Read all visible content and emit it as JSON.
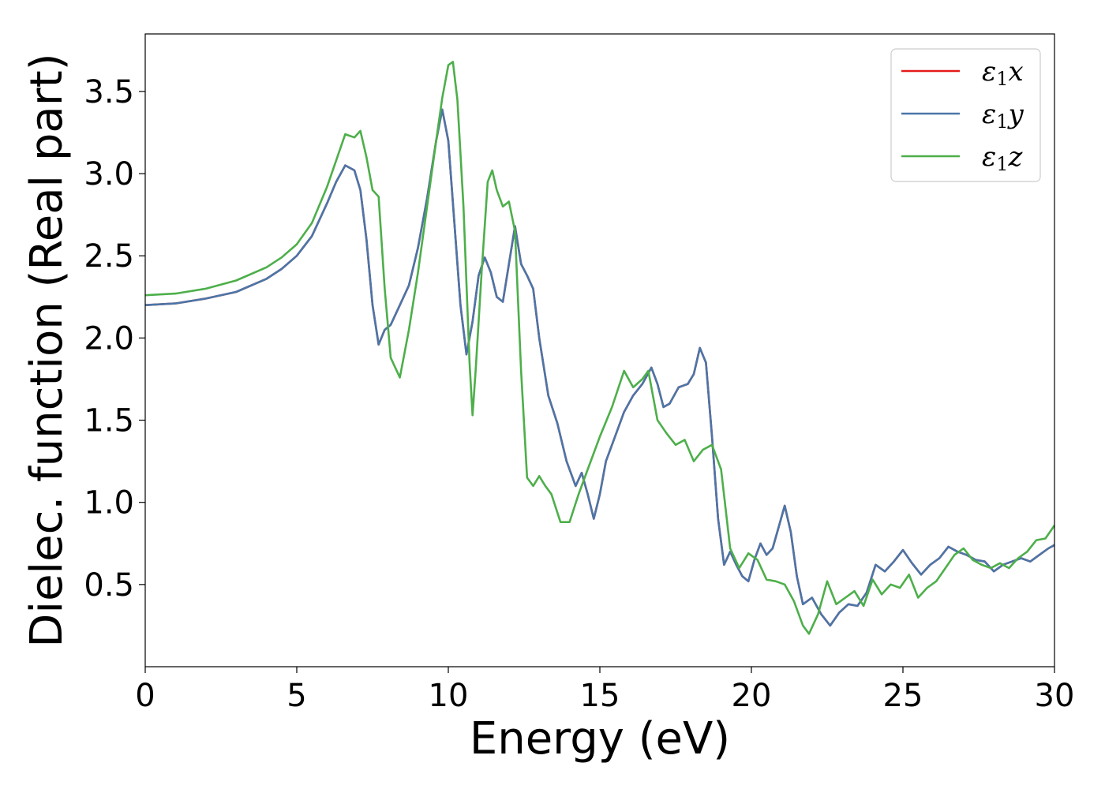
{
  "chart_data": {
    "type": "line",
    "xlabel": "Energy (eV)",
    "ylabel": "Dielec. function (Real part)",
    "xlim": [
      0,
      30
    ],
    "ylim": [
      0.0,
      3.85
    ],
    "xticks": [
      0,
      5,
      10,
      15,
      20,
      25,
      30
    ],
    "yticks": [
      0.5,
      1.0,
      1.5,
      2.0,
      2.5,
      3.0,
      3.5
    ],
    "grid": false,
    "legend_position": "top-right",
    "series": [
      {
        "name": "ε1x",
        "legend_base": "ε",
        "legend_sub": "1",
        "legend_suffix": "x",
        "color": "#e41a1c",
        "x": [
          0,
          1,
          2,
          3,
          4,
          4.5,
          5,
          5.5,
          6,
          6.3,
          6.6,
          6.9,
          7.1,
          7.3,
          7.5,
          7.7,
          7.9,
          8.1,
          8.4,
          8.7,
          9.0,
          9.3,
          9.6,
          9.8,
          10.0,
          10.2,
          10.4,
          10.6,
          10.8,
          11.0,
          11.2,
          11.4,
          11.6,
          11.8,
          12.0,
          12.2,
          12.4,
          12.6,
          12.8,
          13.0,
          13.3,
          13.6,
          13.9,
          14.2,
          14.4,
          14.6,
          14.8,
          15.0,
          15.2,
          15.5,
          15.8,
          16.1,
          16.4,
          16.7,
          16.9,
          17.1,
          17.3,
          17.6,
          17.9,
          18.1,
          18.3,
          18.5,
          18.7,
          18.9,
          19.1,
          19.3,
          19.5,
          19.7,
          19.9,
          20.1,
          20.3,
          20.5,
          20.7,
          20.9,
          21.1,
          21.3,
          21.5,
          21.7,
          22.0,
          22.3,
          22.6,
          22.9,
          23.2,
          23.5,
          23.8,
          24.1,
          24.4,
          24.7,
          25.0,
          25.3,
          25.6,
          25.9,
          26.2,
          26.5,
          26.8,
          27.1,
          27.4,
          27.7,
          28.0,
          28.3,
          28.6,
          28.9,
          29.2,
          29.5,
          29.8,
          30.0
        ],
        "y": [
          2.2,
          2.21,
          2.24,
          2.28,
          2.36,
          2.42,
          2.5,
          2.62,
          2.82,
          2.95,
          3.05,
          3.02,
          2.9,
          2.6,
          2.2,
          1.96,
          2.05,
          2.08,
          2.2,
          2.32,
          2.55,
          2.85,
          3.2,
          3.39,
          3.2,
          2.7,
          2.2,
          1.9,
          2.1,
          2.38,
          2.49,
          2.4,
          2.25,
          2.22,
          2.45,
          2.68,
          2.45,
          2.38,
          2.3,
          2.0,
          1.65,
          1.48,
          1.25,
          1.1,
          1.18,
          1.05,
          0.9,
          1.05,
          1.25,
          1.4,
          1.55,
          1.65,
          1.72,
          1.82,
          1.72,
          1.58,
          1.6,
          1.7,
          1.72,
          1.78,
          1.94,
          1.85,
          1.4,
          0.9,
          0.62,
          0.7,
          0.62,
          0.55,
          0.52,
          0.65,
          0.75,
          0.68,
          0.72,
          0.85,
          0.98,
          0.82,
          0.55,
          0.38,
          0.42,
          0.32,
          0.25,
          0.33,
          0.38,
          0.37,
          0.45,
          0.62,
          0.58,
          0.64,
          0.71,
          0.63,
          0.56,
          0.62,
          0.66,
          0.73,
          0.7,
          0.68,
          0.65,
          0.64,
          0.58,
          0.62,
          0.64,
          0.66,
          0.64,
          0.68,
          0.72,
          0.74
        ]
      },
      {
        "name": "ε1y",
        "legend_base": "ε",
        "legend_sub": "1",
        "legend_suffix": "y",
        "color": "#4a76a8",
        "x": [
          0,
          1,
          2,
          3,
          4,
          4.5,
          5,
          5.5,
          6,
          6.3,
          6.6,
          6.9,
          7.1,
          7.3,
          7.5,
          7.7,
          7.9,
          8.1,
          8.4,
          8.7,
          9.0,
          9.3,
          9.6,
          9.8,
          10.0,
          10.2,
          10.4,
          10.6,
          10.8,
          11.0,
          11.2,
          11.4,
          11.6,
          11.8,
          12.0,
          12.2,
          12.4,
          12.6,
          12.8,
          13.0,
          13.3,
          13.6,
          13.9,
          14.2,
          14.4,
          14.6,
          14.8,
          15.0,
          15.2,
          15.5,
          15.8,
          16.1,
          16.4,
          16.7,
          16.9,
          17.1,
          17.3,
          17.6,
          17.9,
          18.1,
          18.3,
          18.5,
          18.7,
          18.9,
          19.1,
          19.3,
          19.5,
          19.7,
          19.9,
          20.1,
          20.3,
          20.5,
          20.7,
          20.9,
          21.1,
          21.3,
          21.5,
          21.7,
          22.0,
          22.3,
          22.6,
          22.9,
          23.2,
          23.5,
          23.8,
          24.1,
          24.4,
          24.7,
          25.0,
          25.3,
          25.6,
          25.9,
          26.2,
          26.5,
          26.8,
          27.1,
          27.4,
          27.7,
          28.0,
          28.3,
          28.6,
          28.9,
          29.2,
          29.5,
          29.8,
          30.0
        ],
        "y": [
          2.2,
          2.21,
          2.24,
          2.28,
          2.36,
          2.42,
          2.5,
          2.62,
          2.82,
          2.95,
          3.05,
          3.02,
          2.9,
          2.6,
          2.2,
          1.96,
          2.05,
          2.08,
          2.2,
          2.32,
          2.55,
          2.85,
          3.2,
          3.39,
          3.2,
          2.7,
          2.2,
          1.9,
          2.1,
          2.38,
          2.49,
          2.4,
          2.25,
          2.22,
          2.45,
          2.68,
          2.45,
          2.38,
          2.3,
          2.0,
          1.65,
          1.48,
          1.25,
          1.1,
          1.18,
          1.05,
          0.9,
          1.05,
          1.25,
          1.4,
          1.55,
          1.65,
          1.72,
          1.82,
          1.72,
          1.58,
          1.6,
          1.7,
          1.72,
          1.78,
          1.94,
          1.85,
          1.4,
          0.9,
          0.62,
          0.7,
          0.62,
          0.55,
          0.52,
          0.65,
          0.75,
          0.68,
          0.72,
          0.85,
          0.98,
          0.82,
          0.55,
          0.38,
          0.42,
          0.32,
          0.25,
          0.33,
          0.38,
          0.37,
          0.45,
          0.62,
          0.58,
          0.64,
          0.71,
          0.63,
          0.56,
          0.62,
          0.66,
          0.73,
          0.7,
          0.68,
          0.65,
          0.64,
          0.58,
          0.62,
          0.64,
          0.66,
          0.64,
          0.68,
          0.72,
          0.74
        ]
      },
      {
        "name": "ε1z",
        "legend_base": "ε",
        "legend_sub": "1",
        "legend_suffix": "z",
        "color": "#4daf4a",
        "x": [
          0,
          1,
          2,
          3,
          4,
          4.5,
          5,
          5.5,
          6,
          6.3,
          6.6,
          6.9,
          7.1,
          7.3,
          7.5,
          7.7,
          7.9,
          8.1,
          8.4,
          8.7,
          9.0,
          9.3,
          9.6,
          9.8,
          10.0,
          10.15,
          10.3,
          10.5,
          10.7,
          10.8,
          10.9,
          11.1,
          11.3,
          11.45,
          11.6,
          11.8,
          12.0,
          12.2,
          12.4,
          12.6,
          12.8,
          13.0,
          13.2,
          13.4,
          13.7,
          14.0,
          14.3,
          14.6,
          15.0,
          15.4,
          15.8,
          16.1,
          16.4,
          16.6,
          16.9,
          17.2,
          17.5,
          17.8,
          18.1,
          18.4,
          18.7,
          19.0,
          19.3,
          19.6,
          19.9,
          20.2,
          20.5,
          20.8,
          21.1,
          21.4,
          21.7,
          21.9,
          22.2,
          22.5,
          22.8,
          23.1,
          23.4,
          23.7,
          24.0,
          24.3,
          24.6,
          24.9,
          25.2,
          25.5,
          25.8,
          26.1,
          26.4,
          26.7,
          27.0,
          27.3,
          27.6,
          27.9,
          28.2,
          28.5,
          28.8,
          29.1,
          29.4,
          29.7,
          30.0
        ],
        "y": [
          2.26,
          2.27,
          2.3,
          2.35,
          2.43,
          2.49,
          2.57,
          2.7,
          2.92,
          3.08,
          3.24,
          3.22,
          3.26,
          3.1,
          2.9,
          2.86,
          2.3,
          1.88,
          1.76,
          2.05,
          2.4,
          2.8,
          3.2,
          3.46,
          3.66,
          3.68,
          3.45,
          2.8,
          1.85,
          1.53,
          1.8,
          2.4,
          2.95,
          3.02,
          2.9,
          2.8,
          2.83,
          2.65,
          1.8,
          1.15,
          1.1,
          1.16,
          1.1,
          1.05,
          0.88,
          0.88,
          1.05,
          1.2,
          1.4,
          1.58,
          1.8,
          1.7,
          1.75,
          1.8,
          1.5,
          1.42,
          1.35,
          1.38,
          1.25,
          1.32,
          1.35,
          1.2,
          0.72,
          0.6,
          0.69,
          0.65,
          0.53,
          0.52,
          0.5,
          0.4,
          0.25,
          0.2,
          0.32,
          0.52,
          0.38,
          0.42,
          0.46,
          0.37,
          0.53,
          0.44,
          0.5,
          0.48,
          0.56,
          0.42,
          0.48,
          0.52,
          0.6,
          0.68,
          0.72,
          0.65,
          0.62,
          0.6,
          0.63,
          0.6,
          0.66,
          0.7,
          0.77,
          0.78,
          0.86
        ]
      }
    ]
  }
}
